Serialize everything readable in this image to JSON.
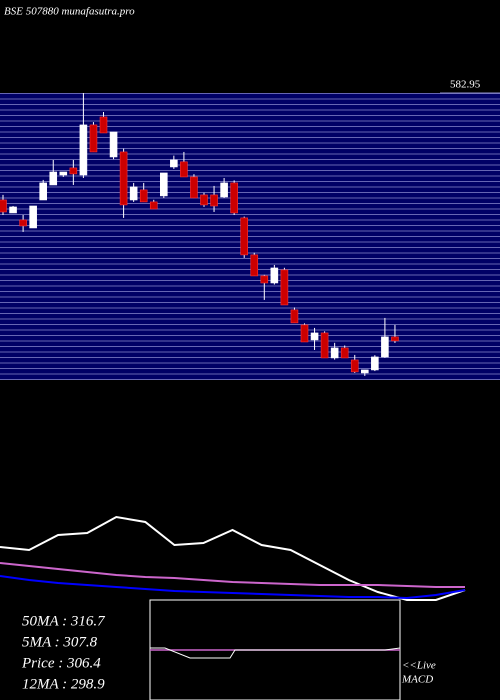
{
  "chart_data": [
    {
      "type": "candlestick",
      "title": "BSE 507880 munafasutra.pro",
      "ylim": [
        257.9,
        582.95
      ],
      "yticks": [
        582.95
      ],
      "open": [
        461.8,
        447.1,
        439.2,
        430.1,
        461.8,
        478.8,
        490.1,
        498.1,
        490.1,
        546.8,
        555.8,
        510.5,
        516.2,
        461.8,
        473.2,
        459.6,
        466.4,
        499.2,
        505.0,
        487.9,
        467.5,
        467.5,
        465.2,
        481.1,
        441.5,
        399.6,
        375.8,
        367.8,
        382.6,
        337.3,
        320.3,
        303.3,
        311.2,
        282.9,
        294.2,
        280.6,
        265.9,
        269.3,
        284.0,
        306.7
      ],
      "high": [
        467.5,
        455.0,
        444.8,
        455.0,
        484.5,
        507.1,
        493.5,
        507.1,
        582.95,
        550.0,
        561.5,
        538.8,
        520.0,
        481.1,
        481.1,
        462.0,
        492.4,
        512.0,
        516.2,
        491.0,
        470.0,
        477.7,
        486.7,
        484.0,
        443.0,
        402.0,
        377.0,
        388.2,
        385.0,
        340.0,
        322.0,
        316.9,
        313.0,
        300.0,
        297.0,
        286.3,
        269.3,
        286.0,
        328.2,
        320.3
      ],
      "low": [
        444.8,
        447.1,
        425.6,
        430.1,
        461.8,
        478.8,
        487.9,
        478.8,
        486.7,
        516.2,
        537.7,
        508.0,
        441.5,
        459.6,
        459.6,
        451.6,
        464.0,
        497.0,
        487.9,
        464.1,
        454.0,
        448.2,
        464.0,
        444.8,
        396.2,
        375.8,
        348.6,
        366.0,
        342.9,
        322.6,
        301.0,
        291.9,
        282.9,
        281.0,
        282.9,
        265.9,
        262.5,
        268.0,
        283.0,
        299.9
      ],
      "close": [
        448.2,
        453.9,
        432.4,
        455.0,
        481.1,
        493.5,
        493.5,
        491.3,
        546.8,
        516.2,
        537.7,
        538.8,
        456.2,
        476.6,
        459.6,
        451.6,
        492.4,
        507.1,
        487.9,
        464.1,
        456.2,
        455.0,
        481.1,
        447.1,
        399.6,
        375.8,
        367.8,
        384.8,
        342.9,
        322.6,
        301.0,
        311.2,
        282.9,
        294.2,
        282.9,
        267.1,
        269.3,
        284.0,
        306.7,
        302.2
      ],
      "up_color": "#ffffff",
      "down_color": "#cc0000",
      "grid": true,
      "annotations": [
        "50MA : 316.7",
        "5MA : 307.8",
        "Price : 306.4",
        "12MA : 298.9",
        "<<Live",
        "MACD"
      ]
    },
    {
      "type": "line",
      "categories": [
        null,
        null,
        null,
        null,
        null,
        null,
        null,
        null,
        null,
        null,
        null,
        null,
        null,
        null,
        null,
        null,
        null
      ],
      "ylim": [
        0,
        100
      ],
      "series": [
        {
          "color": "#ffffff",
          "values": [
            58.9,
            55.6,
            72.2,
            74.4,
            92.2,
            86.7,
            61.1,
            63.3,
            77.8,
            61.1,
            55.6,
            38.9,
            22.2,
            8.9,
            0,
            0,
            11.1
          ]
        },
        {
          "color": "#cc66cc",
          "values": [
            41.1,
            37.8,
            34.4,
            31.1,
            27.8,
            25.6,
            24.4,
            22.2,
            20,
            18.9,
            17.8,
            16.7,
            16.7,
            16.7,
            15.6,
            14.4,
            14.4
          ]
        },
        {
          "color": "#0000ff",
          "values": [
            26.7,
            22.2,
            18.9,
            16.7,
            14.4,
            12.2,
            10,
            8.9,
            7.8,
            6.7,
            5.6,
            4.4,
            3.3,
            3.3,
            2.2,
            5.6,
            11.1
          ]
        }
      ]
    }
  ]
}
